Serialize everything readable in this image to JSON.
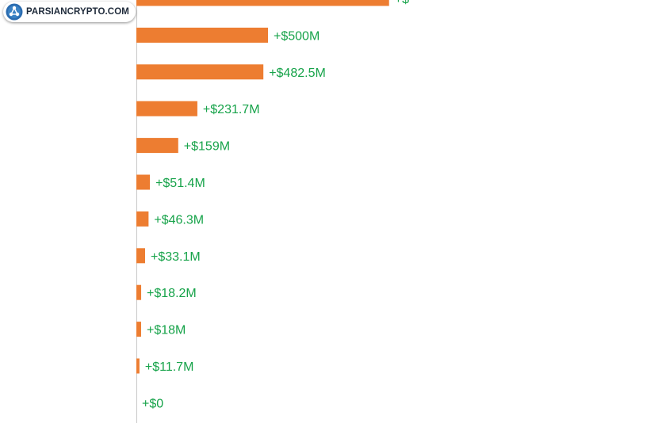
{
  "logo": {
    "text": "PARSIANCRYPTO.COM"
  },
  "colors": {
    "bar": "#ED7D31",
    "label": "#17A34A",
    "axis": "#C8C8C8"
  },
  "chart_data": {
    "type": "bar",
    "orientation": "horizontal",
    "title": "",
    "xlabel": "",
    "ylabel": "",
    "categories": [],
    "values": [
      960,
      500,
      482.5,
      231.7,
      159,
      51.4,
      46.3,
      33.1,
      18.2,
      18,
      11.7,
      0
    ],
    "labels": [
      "+$",
      "+$500M",
      "+$482.5M",
      "+$231.7M",
      "+$159M",
      "+$51.4M",
      "+$46.3M",
      "+$33.1M",
      "+$18.2M",
      "+$18M",
      "+$11.7M",
      "+$0"
    ],
    "unit": "$M",
    "xlim": [
      0,
      960
    ],
    "note": "Top bar is cropped at the image edge; its value label is cut off."
  }
}
